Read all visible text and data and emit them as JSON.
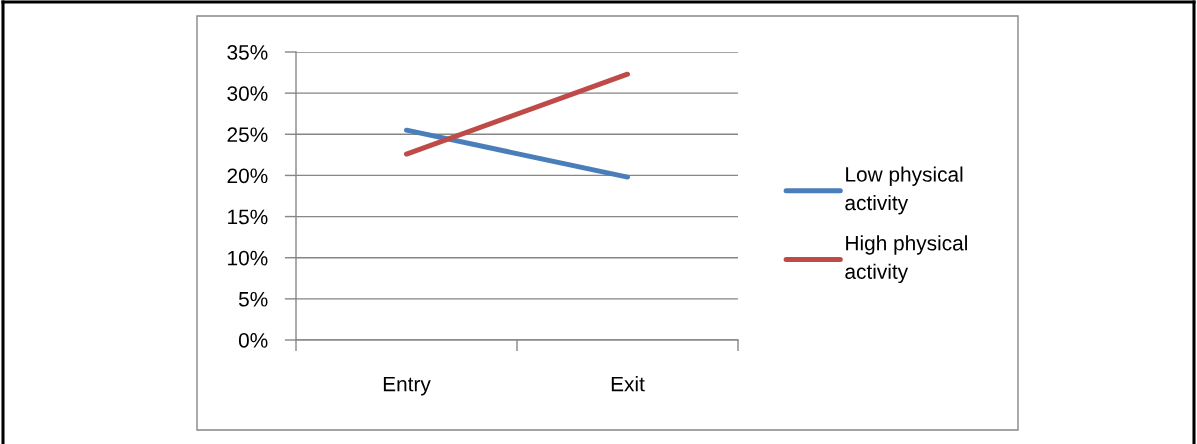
{
  "chart_data": {
    "type": "line",
    "categories": [
      "Entry",
      "Exit"
    ],
    "series": [
      {
        "name": "Low physical\nactivity",
        "color": "#4a7ebb",
        "values": [
          25.5,
          19.8
        ]
      },
      {
        "name": "High physical\nactivity",
        "color": "#be4b48",
        "values": [
          22.6,
          32.3
        ]
      }
    ],
    "ylim": [
      0,
      35
    ],
    "yticks": [
      {
        "value": 0,
        "label": "0%"
      },
      {
        "value": 5,
        "label": "5%"
      },
      {
        "value": 10,
        "label": "10%"
      },
      {
        "value": 15,
        "label": "15%"
      },
      {
        "value": 20,
        "label": "20%"
      },
      {
        "value": 25,
        "label": "25%"
      },
      {
        "value": 30,
        "label": "30%"
      },
      {
        "value": 35,
        "label": "35%"
      }
    ],
    "grid": "y",
    "legend": "right",
    "marker": "none",
    "line_style": "solid"
  }
}
